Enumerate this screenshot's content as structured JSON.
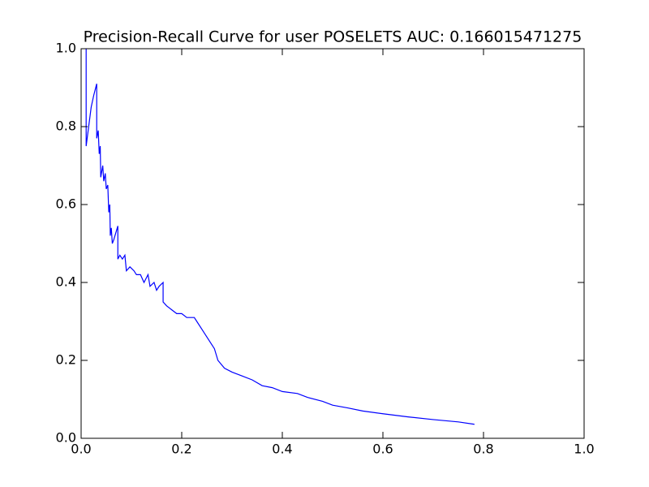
{
  "chart_data": {
    "type": "line",
    "title": "Precision-Recall Curve for user POSELETS AUC: 0.166015471275",
    "x": [
      0.01,
      0.01,
      0.015,
      0.02,
      0.025,
      0.031,
      0.031,
      0.034,
      0.036,
      0.038,
      0.039,
      0.043,
      0.045,
      0.048,
      0.05,
      0.053,
      0.055,
      0.057,
      0.058,
      0.06,
      0.062,
      0.065,
      0.073,
      0.073,
      0.077,
      0.082,
      0.087,
      0.09,
      0.097,
      0.105,
      0.11,
      0.118,
      0.125,
      0.133,
      0.137,
      0.145,
      0.15,
      0.155,
      0.163,
      0.163,
      0.17,
      0.18,
      0.19,
      0.2,
      0.21,
      0.225,
      0.23,
      0.24,
      0.25,
      0.26,
      0.265,
      0.272,
      0.285,
      0.3,
      0.32,
      0.34,
      0.36,
      0.38,
      0.4,
      0.43,
      0.45,
      0.48,
      0.5,
      0.53,
      0.56,
      0.6,
      0.65,
      0.7,
      0.75,
      0.782
    ],
    "series": [
      {
        "name": "precision",
        "color": "#0000ff",
        "values": [
          1.0,
          0.75,
          0.8,
          0.85,
          0.88,
          0.91,
          0.77,
          0.79,
          0.73,
          0.75,
          0.67,
          0.7,
          0.66,
          0.68,
          0.64,
          0.65,
          0.58,
          0.6,
          0.52,
          0.54,
          0.5,
          0.51,
          0.545,
          0.46,
          0.47,
          0.46,
          0.47,
          0.43,
          0.44,
          0.43,
          0.42,
          0.42,
          0.4,
          0.42,
          0.39,
          0.4,
          0.38,
          0.39,
          0.4,
          0.35,
          0.34,
          0.33,
          0.32,
          0.32,
          0.31,
          0.31,
          0.3,
          0.28,
          0.26,
          0.24,
          0.23,
          0.2,
          0.18,
          0.17,
          0.16,
          0.15,
          0.135,
          0.13,
          0.12,
          0.115,
          0.105,
          0.095,
          0.085,
          0.078,
          0.07,
          0.063,
          0.055,
          0.048,
          0.042,
          0.036
        ]
      }
    ],
    "xlim": [
      0,
      1
    ],
    "ylim": [
      0,
      1
    ],
    "xticks": [
      {
        "value": 0,
        "label": "0.0"
      },
      0.2,
      0.4,
      0.6,
      0.8,
      {
        "value": 1,
        "label": "1.0"
      }
    ],
    "yticks": [
      {
        "value": 0,
        "label": "0.0"
      },
      0.2,
      0.4,
      0.6,
      0.8,
      {
        "value": 1,
        "label": "1.0"
      }
    ],
    "grid": false
  }
}
